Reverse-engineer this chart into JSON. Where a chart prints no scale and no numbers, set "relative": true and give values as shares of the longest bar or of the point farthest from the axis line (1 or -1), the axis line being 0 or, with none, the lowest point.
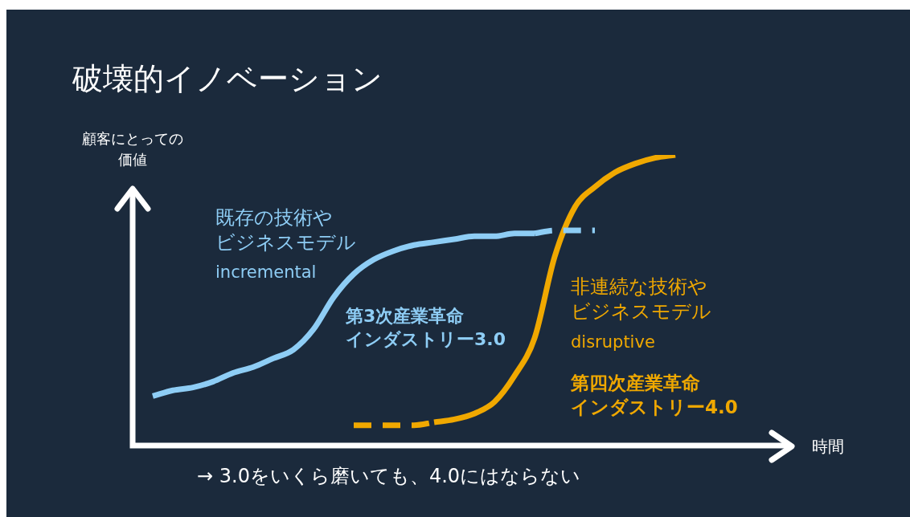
{
  "chart_data": {
    "type": "line",
    "title": "破壊的イノベーション",
    "ylabel": "顧客にとっての価値",
    "xlabel": "時間",
    "relative": true,
    "legend": false,
    "grid": false,
    "marker": "none",
    "categories": [
      null,
      null,
      null,
      null,
      null,
      null,
      null,
      null,
      null,
      null,
      null,
      null,
      null,
      null,
      null,
      null,
      null,
      null,
      null,
      null,
      null,
      null,
      null,
      null,
      null,
      null,
      null,
      null,
      null,
      null,
      null,
      null,
      null
    ],
    "series": [
      {
        "name": "既存の技術やビジネスモデル",
        "color": "#8ecdf5",
        "line_style": "solid",
        "values": [
          null,
          0.17,
          0.19,
          0.2,
          0.22,
          0.25,
          0.27,
          0.3,
          0.33,
          0.4,
          0.51,
          0.59,
          0.64,
          0.67,
          0.69,
          0.7,
          0.71,
          0.72,
          0.72,
          0.73,
          0.73,
          null,
          null,
          null,
          null,
          null,
          null,
          null,
          null,
          null,
          null,
          null,
          null
        ]
      },
      {
        "color": "#8ecdf5",
        "line_style": "dashed",
        "values": [
          null,
          null,
          null,
          null,
          null,
          null,
          null,
          null,
          null,
          null,
          null,
          null,
          null,
          null,
          null,
          null,
          null,
          null,
          null,
          null,
          0.73,
          0.74,
          0.74,
          0.74,
          null,
          null,
          null,
          null,
          null,
          null,
          null,
          null,
          null
        ]
      },
      {
        "color": "#f0a800",
        "line_style": "dashed",
        "values": [
          null,
          null,
          null,
          null,
          null,
          null,
          null,
          null,
          null,
          null,
          null,
          0.07,
          0.07,
          0.07,
          0.07,
          0.08,
          null,
          null,
          null,
          null,
          null,
          null,
          null,
          null,
          null,
          null,
          null,
          null,
          null,
          null,
          null,
          null,
          null
        ]
      },
      {
        "name": "非連続な技術やビジネスモデル",
        "color": "#f0a800",
        "line_style": "solid",
        "values": [
          null,
          null,
          null,
          null,
          null,
          null,
          null,
          null,
          null,
          null,
          null,
          null,
          null,
          null,
          null,
          0.08,
          0.09,
          0.11,
          0.15,
          0.24,
          0.37,
          0.65,
          0.82,
          0.89,
          0.94,
          0.97,
          0.99,
          1,
          null,
          null,
          null,
          null,
          null
        ]
      }
    ],
    "annotations": [
      "incremental",
      "第3次産業革命インダストリー3.0",
      "disruptive",
      "第四次産業革命インダストリー4.0",
      "→ 3.0をいくら磨いても、4.0にはならない"
    ]
  }
}
